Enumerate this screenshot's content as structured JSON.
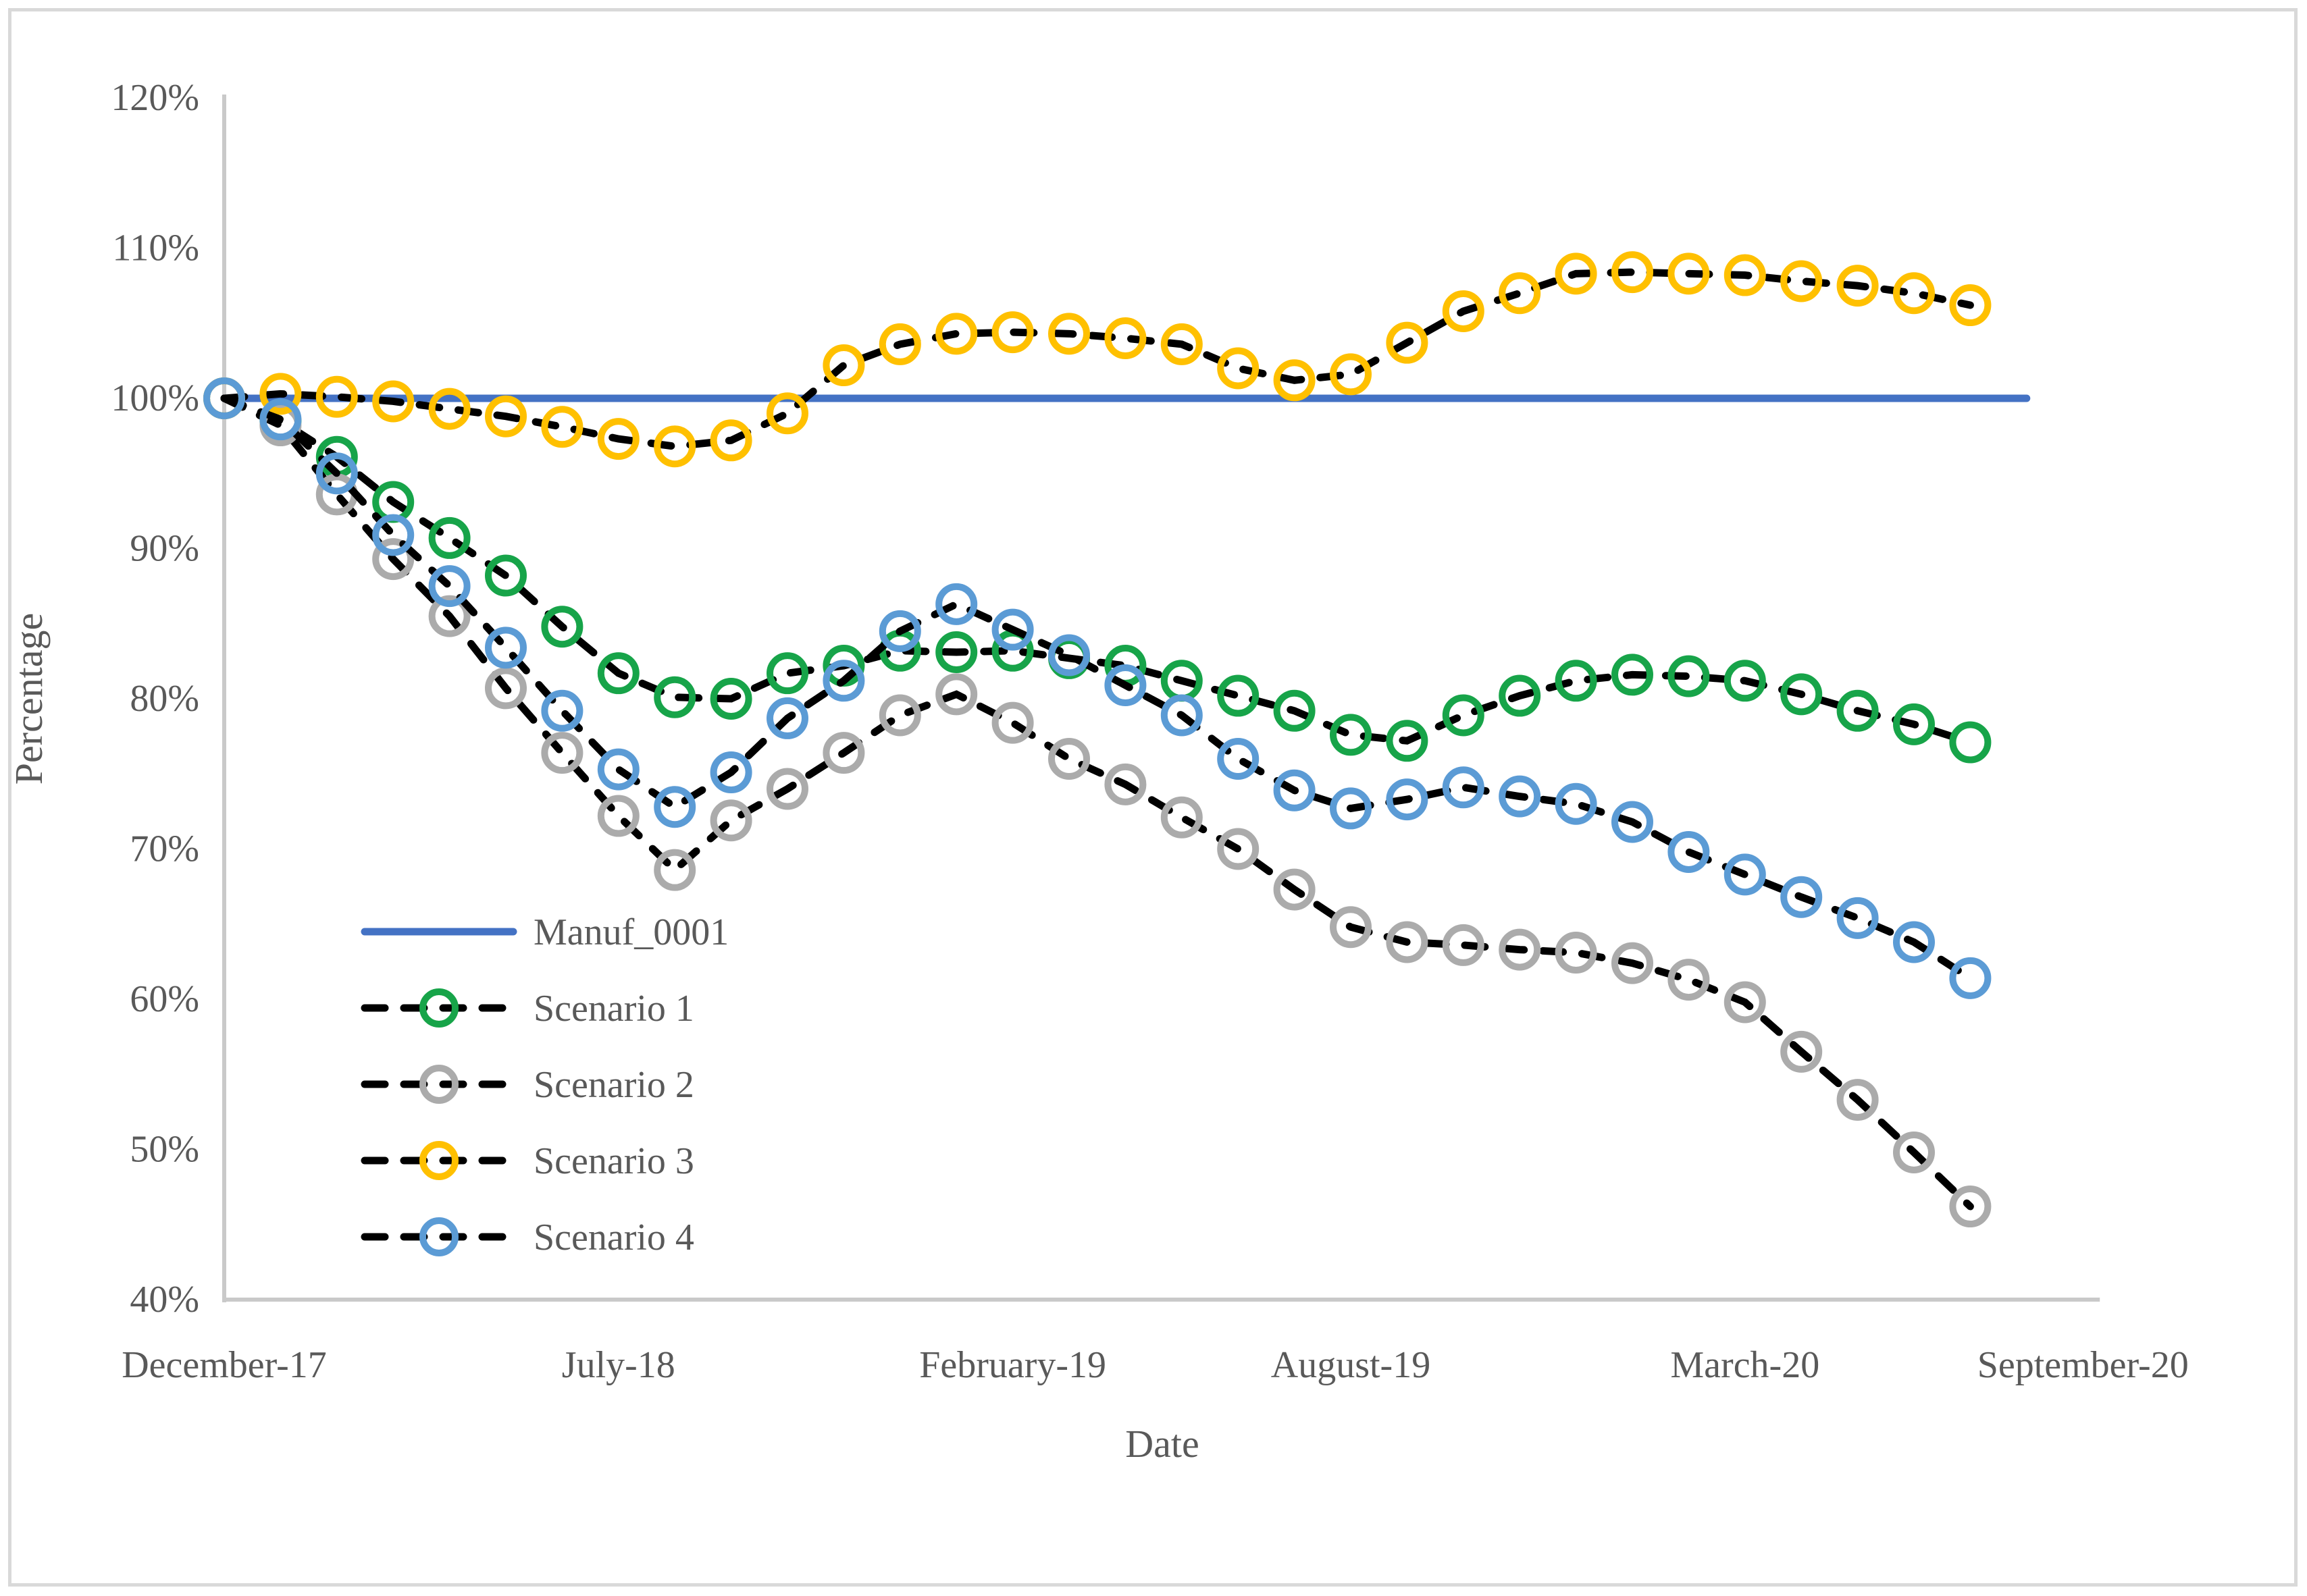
{
  "chart_data": {
    "type": "line",
    "title": "",
    "xlabel": "Date",
    "ylabel": "Percentage",
    "ylim": [
      40,
      120
    ],
    "grid": false,
    "legend_position": "inside-left-middle",
    "ytick_labels": [
      "120%",
      "110%",
      "100%",
      "90%",
      "80%",
      "70%",
      "60%",
      "50%",
      "40%"
    ],
    "ytick_values": [
      120,
      110,
      100,
      90,
      80,
      70,
      60,
      50,
      40
    ],
    "xtick_labels": [
      "December-17",
      "July-18",
      "February-19",
      "August-19",
      "March-20",
      "September-20"
    ],
    "xtick_month_index": [
      0,
      7,
      14,
      20,
      27,
      33
    ],
    "categories": [
      "December-17",
      "January-18",
      "February-18",
      "March-18",
      "April-18",
      "May-18",
      "June-18",
      "July-18",
      "August-18",
      "September-18",
      "October-18",
      "November-18",
      "December-18",
      "January-19",
      "February-19",
      "March-19",
      "April-19",
      "May-19",
      "June-19",
      "July-19",
      "August-19",
      "September-19",
      "October-19",
      "November-19",
      "December-19",
      "January-20",
      "February-20",
      "March-20",
      "April-20",
      "May-20",
      "June-20",
      "July-20",
      "August-20"
    ],
    "series": [
      {
        "name": "Manuf_0001",
        "color": "#4472C4",
        "line_style": "solid",
        "marker": "none",
        "values": [
          100,
          100,
          100,
          100,
          100,
          100,
          100,
          100,
          100,
          100,
          100,
          100,
          100,
          100,
          100,
          100,
          100,
          100,
          100,
          100,
          100,
          100,
          100,
          100,
          100,
          100,
          100,
          100,
          100,
          100,
          100,
          100,
          100
        ]
      },
      {
        "name": "Scenario 1",
        "color": "#17A449",
        "line_style": "dashed",
        "line_color": "#000000",
        "marker": "open-circle",
        "values": [
          100,
          98.5,
          96.1,
          93.1,
          90.7,
          88.2,
          84.8,
          81.7,
          80.1,
          80.0,
          81.7,
          82.2,
          83.2,
          83.1,
          83.2,
          82.7,
          82.2,
          81.2,
          80.2,
          79.2,
          77.6,
          77.2,
          78.9,
          80.2,
          81.2,
          81.6,
          81.5,
          81.2,
          80.3,
          79.2,
          78.3,
          77.1
        ]
      },
      {
        "name": "Scenario 2",
        "color": "#ABABAB",
        "line_style": "dashed",
        "line_color": "#000000",
        "marker": "open-circle",
        "values": [
          100,
          98.2,
          93.6,
          89.3,
          85.5,
          80.7,
          76.4,
          72.2,
          68.6,
          71.9,
          74.0,
          76.4,
          78.9,
          80.3,
          78.4,
          76.0,
          74.3,
          72.1,
          70.0,
          67.3,
          64.8,
          63.8,
          63.6,
          63.3,
          63.1,
          62.4,
          61.3,
          59.8,
          56.5,
          53.3,
          49.8,
          46.2
        ]
      },
      {
        "name": "Scenario 3",
        "color": "#FFC000",
        "line_style": "dashed",
        "line_color": "#000000",
        "marker": "open-circle",
        "values": [
          100,
          100.3,
          100.1,
          99.8,
          99.3,
          98.8,
          98.1,
          97.3,
          96.8,
          97.2,
          99.0,
          102.2,
          103.6,
          104.3,
          104.4,
          104.3,
          104.0,
          103.6,
          102.0,
          101.2,
          101.6,
          103.7,
          105.8,
          107.0,
          108.3,
          108.4,
          108.3,
          108.2,
          107.8,
          107.5,
          107.0,
          106.2
        ]
      },
      {
        "name": "Scenario 4",
        "color": "#5B9BD5",
        "line_style": "dashed",
        "line_color": "#000000",
        "marker": "open-circle",
        "values": [
          100,
          98.6,
          95.0,
          90.9,
          87.5,
          83.4,
          79.2,
          75.3,
          72.8,
          75.1,
          78.7,
          81.2,
          84.5,
          86.3,
          84.6,
          82.9,
          80.9,
          78.9,
          76.0,
          73.9,
          72.7,
          73.3,
          74.1,
          73.5,
          73.0,
          71.8,
          69.8,
          68.3,
          66.8,
          65.4,
          63.8,
          61.4
        ]
      }
    ]
  },
  "legend": {
    "items": [
      "Manuf_0001",
      "Scenario 1",
      "Scenario 2",
      "Scenario 3",
      "Scenario 4"
    ]
  },
  "colors": {
    "axis_line": "#c9c9c9",
    "frame_border": "#d9d9d9",
    "text": "#595959",
    "dash": "#000000"
  }
}
